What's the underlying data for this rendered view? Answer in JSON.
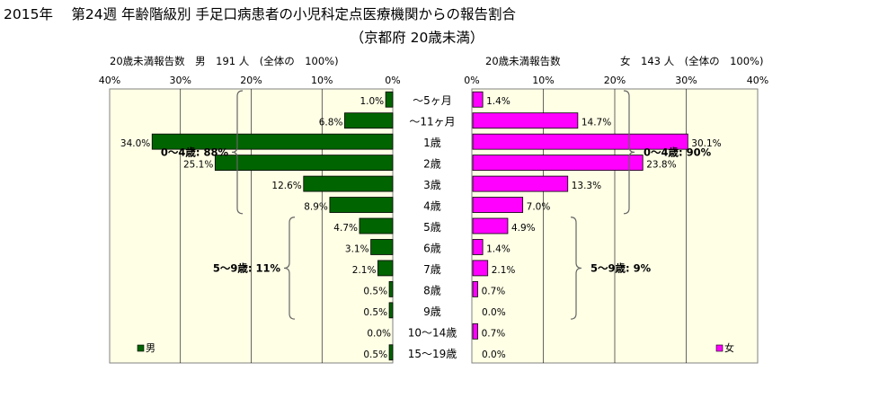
{
  "title": {
    "line1": "2015年　 第24週 年齢階級別 手足口病患者の小児科定点医療機関からの報告割合",
    "line2": "（京都府 20歳未満）"
  },
  "colors": {
    "male": "#006400",
    "female": "#ff00ff",
    "bar_outline": "#000000",
    "plot_bg": "#ffffe6",
    "grid": "#000000",
    "brace": "#666666"
  },
  "chart_data": {
    "type": "bar",
    "orientation": "horizontal-population-pyramid",
    "categories": [
      "～5ヶ月",
      "～11ヶ月",
      "1歳",
      "2歳",
      "3歳",
      "4歳",
      "5歳",
      "6歳",
      "7歳",
      "8歳",
      "9歳",
      "10～14歳",
      "15～19歳"
    ],
    "x_ticks_left": [
      "40%",
      "30%",
      "20%",
      "10%",
      "0%"
    ],
    "x_ticks_right": [
      "0%",
      "10%",
      "20%",
      "30%",
      "40%"
    ],
    "xlim": [
      0,
      40
    ],
    "grid": true,
    "series": [
      {
        "name": "男",
        "side": "left",
        "header": "20歳未満報告数　男　191 人　(全体の　100%)",
        "values": [
          1.0,
          6.8,
          34.0,
          25.1,
          12.6,
          8.9,
          4.7,
          3.1,
          2.1,
          0.5,
          0.5,
          0.0,
          0.5
        ],
        "labels": [
          "1.0%",
          "6.8%",
          "34.0%",
          "25.1%",
          "12.6%",
          "8.9%",
          "4.7%",
          "3.1%",
          "2.1%",
          "0.5%",
          "0.5%",
          "0.0%",
          "0.5%"
        ],
        "groups": [
          {
            "label": "0～4歳: 88%",
            "from": 0,
            "to": 5
          },
          {
            "label": "5～9歳: 11%",
            "from": 6,
            "to": 10
          }
        ],
        "legend": "男"
      },
      {
        "name": "女",
        "side": "right",
        "header_left": "20歳未満報告数",
        "header_right": "女　143 人　(全体の　100%)",
        "values": [
          1.4,
          14.7,
          30.1,
          23.8,
          13.3,
          7.0,
          4.9,
          1.4,
          2.1,
          0.7,
          0.0,
          0.7,
          0.0
        ],
        "labels": [
          "1.4%",
          "14.7%",
          "30.1%",
          "23.8%",
          "13.3%",
          "7.0%",
          "4.9%",
          "1.4%",
          "2.1%",
          "0.7%",
          "0.0%",
          "0.7%",
          "0.0%"
        ],
        "groups": [
          {
            "label": "0～4歳: 90%",
            "from": 0,
            "to": 5
          },
          {
            "label": "5～9歳: 9%",
            "from": 6,
            "to": 10
          }
        ],
        "legend": "女"
      }
    ]
  }
}
